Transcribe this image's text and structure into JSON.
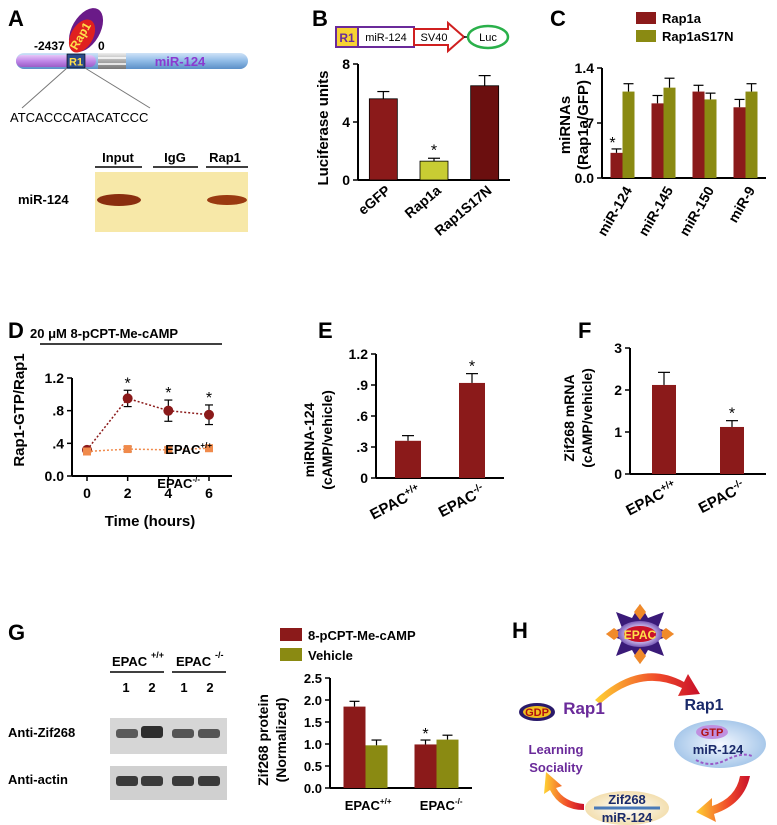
{
  "panels": {
    "A": {
      "label": "A",
      "coord_left": "-2437",
      "coord_zero": "0",
      "rap1_label": "Rap1",
      "r1_label": "R1",
      "mir_label": "miR-124",
      "sequence": "ATCACCCATACATCCC",
      "gel_headers": [
        "Input",
        "IgG",
        "Rap1"
      ],
      "gel_row_label": "miR-124",
      "colors": {
        "bar_blue": "#9cc4ea",
        "region_purple": "#c087e8",
        "rap1_oval": "#6a1a88",
        "rap1_red": "#e02020"
      }
    },
    "B": {
      "label": "B",
      "construct": [
        "R1",
        "miR-124",
        "SV40",
        "Luc"
      ],
      "chart_data": {
        "type": "bar",
        "categories": [
          "eGFP",
          "Rap1a",
          "Rap1S17N"
        ],
        "values": [
          5.6,
          1.3,
          6.5
        ],
        "errors": [
          0.5,
          0.2,
          0.7
        ],
        "colors": [
          "#8b1a1a",
          "#c8cc33",
          "#6b0f0f"
        ],
        "ylabel": "Luciferase units",
        "ylim": [
          0,
          8
        ],
        "yticks": [
          "0",
          "4",
          "8"
        ],
        "star_on": [
          "Rap1a"
        ],
        "star": "*"
      }
    },
    "C": {
      "label": "C",
      "chart_data": {
        "type": "bar",
        "categories": [
          "miR-124",
          "miR-145",
          "miR-150",
          "miR-9"
        ],
        "series": [
          {
            "name": "Rap1a",
            "values": [
              0.32,
              0.95,
              1.1,
              0.9
            ],
            "errors": [
              0.05,
              0.1,
              0.08,
              0.1
            ],
            "color": "#8b1a1a"
          },
          {
            "name": "Rap1aS17N",
            "values": [
              1.1,
              1.15,
              1.0,
              1.1
            ],
            "errors": [
              0.1,
              0.12,
              0.08,
              0.1
            ],
            "color": "#8a8a12"
          }
        ],
        "ylabel": "miRNAs (Rap1a/GFP)",
        "ylabel_lines": [
          "miRNAs",
          "(Rap1a/GFP)"
        ],
        "ylim": [
          0,
          1.4
        ],
        "yticks": [
          "0.0",
          ".7",
          "1.4"
        ],
        "star": "*"
      }
    },
    "D": {
      "label": "D",
      "title": "20 μM 8-pCPT-Me-cAMP",
      "chart_data": {
        "type": "line",
        "x": [
          0,
          2,
          4,
          6
        ],
        "series": [
          {
            "name": "EPAC+/+",
            "values": [
              0.32,
              0.95,
              0.8,
              0.75
            ],
            "errors": [
              0.03,
              0.1,
              0.13,
              0.12
            ],
            "color": "#8b1a1a"
          },
          {
            "name": "EPAC-/-",
            "values": [
              0.3,
              0.33,
              0.32,
              0.34
            ],
            "errors": [
              0.03,
              0.03,
              0.03,
              0.03
            ],
            "color": "#f08a4b"
          }
        ],
        "xlabel": "Time (hours)",
        "ylabel": "Rap1-GTP/Rap1",
        "ylim": [
          0,
          1.2
        ],
        "yticks": [
          "0.0",
          ".4",
          ".8",
          "1.2"
        ],
        "xticks": [
          "0",
          "2",
          "4",
          "6"
        ],
        "legend_base": "EPAC",
        "legend_sup": [
          "+/+",
          "-/-"
        ],
        "star": "*"
      }
    },
    "E": {
      "label": "E",
      "chart_data": {
        "type": "bar",
        "categories": [
          "EPAC+/+",
          "EPAC-/-"
        ],
        "values": [
          0.36,
          0.92
        ],
        "errors": [
          0.05,
          0.09
        ],
        "color": "#8b1a1a",
        "ylabel_lines": [
          "miRNA-124",
          "(cAMP/vehicle)"
        ],
        "ylim": [
          0,
          1.2
        ],
        "yticks": [
          "0",
          ".3",
          ".6",
          ".9",
          "1.2"
        ],
        "cat_base": "EPAC",
        "cat_sup": [
          "+/+",
          "-/-"
        ],
        "star": "*"
      }
    },
    "F": {
      "label": "F",
      "chart_data": {
        "type": "bar",
        "categories": [
          "EPAC+/+",
          "EPAC-/-"
        ],
        "values": [
          2.12,
          1.12
        ],
        "errors": [
          0.3,
          0.15
        ],
        "color": "#8b1a1a",
        "ylabel_lines": [
          "Zif268 mRNA",
          "(cAMP/vehicle)"
        ],
        "ylim": [
          0,
          3
        ],
        "yticks": [
          "0",
          "1",
          "2",
          "3"
        ],
        "cat_base": "EPAC",
        "cat_sup": [
          "+/+",
          "-/-"
        ],
        "star": "*"
      }
    },
    "G": {
      "label": "G",
      "blot_groups": [
        "EPAC",
        "EPAC"
      ],
      "blot_sup": [
        "+/+",
        "-/-"
      ],
      "lanes": [
        "1",
        "2",
        "1",
        "2"
      ],
      "blot_rows": [
        "Anti-Zif268",
        "Anti-actin"
      ],
      "chart_data": {
        "type": "bar",
        "categories": [
          "EPAC+/+",
          "EPAC-/-"
        ],
        "series": [
          {
            "name": "8-pCPT-Me-cAMP",
            "values": [
              1.85,
              0.99
            ],
            "errors": [
              0.12,
              0.1
            ],
            "color": "#8b1a1a"
          },
          {
            "name": "Vehicle",
            "values": [
              0.97,
              1.1
            ],
            "errors": [
              0.12,
              0.1
            ],
            "color": "#8a8a12"
          }
        ],
        "ylabel_lines": [
          "Zif268 protein",
          "(Normalized)"
        ],
        "ylim": [
          0,
          2.5
        ],
        "yticks": [
          "0.0",
          "0.5",
          "1.0",
          "1.5",
          "2.0",
          "2.5"
        ],
        "cat_base": "EPAC",
        "cat_sup": [
          "+/+",
          "-/-"
        ],
        "star": "*"
      }
    },
    "H": {
      "label": "H",
      "epac": "EPAC",
      "gdp": "GDP",
      "rap1_left": "Rap1",
      "rap1_right": "Rap1",
      "gtp": "GTP",
      "mir_upper": "miR-124",
      "zif": "Zif268",
      "mir_lower": "miR-124",
      "outcome": [
        "Learning",
        "Sociality"
      ]
    }
  }
}
